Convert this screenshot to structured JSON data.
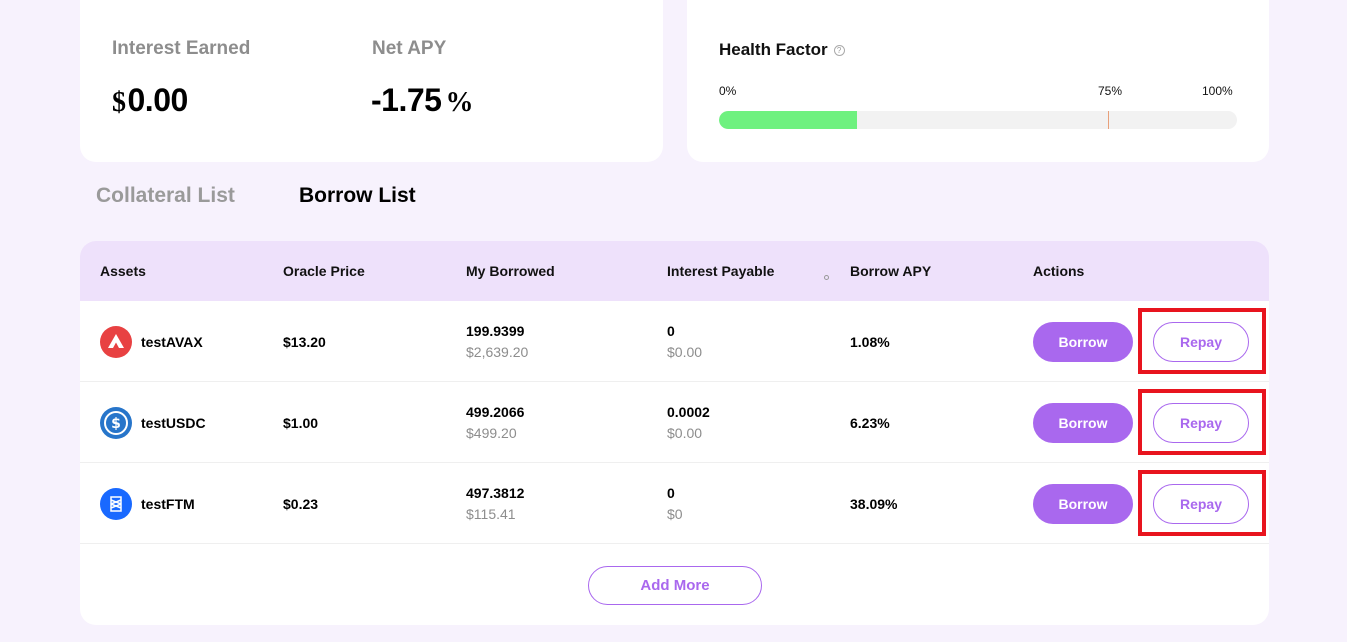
{
  "stats": {
    "interest_earned": {
      "label": "Interest Earned",
      "currency": "$",
      "value": "0.00"
    },
    "net_apy": {
      "label": "Net APY",
      "value": "-1.75",
      "unit": "%"
    }
  },
  "health_factor": {
    "title": "Health Factor",
    "help": "?",
    "ticks": {
      "min": "0%",
      "mid": "75%",
      "max": "100%"
    },
    "level_percent": 26.6,
    "threshold_percent": 75,
    "fill_color": "#6ef17f"
  },
  "tabs": [
    {
      "label": "Collateral List",
      "active": false
    },
    {
      "label": "Borrow List",
      "active": true
    }
  ],
  "table": {
    "columns": [
      "Assets",
      "Oracle Price",
      "My Borrowed",
      "Interest Payable",
      "Borrow APY",
      "Actions"
    ],
    "rows": [
      {
        "icon": "avax-icon",
        "asset": "testAVAX",
        "oracle_price": "$13.20",
        "borrowed": "199.9399",
        "borrowed_usd": "$2,639.20",
        "interest": "0",
        "interest_usd": "$0.00",
        "apy": "1.08%",
        "borrow_label": "Borrow",
        "repay_label": "Repay"
      },
      {
        "icon": "usdc-icon",
        "asset": "testUSDC",
        "oracle_price": "$1.00",
        "borrowed": "499.2066",
        "borrowed_usd": "$499.20",
        "interest": "0.0002",
        "interest_usd": "$0.00",
        "apy": "6.23%",
        "borrow_label": "Borrow",
        "repay_label": "Repay"
      },
      {
        "icon": "ftm-icon",
        "asset": "testFTM",
        "oracle_price": "$0.23",
        "borrowed": "497.3812",
        "borrowed_usd": "$115.41",
        "interest": "0",
        "interest_usd": "$0",
        "apy": "38.09%",
        "borrow_label": "Borrow",
        "repay_label": "Repay"
      }
    ],
    "add_more_label": "Add More"
  },
  "colors": {
    "accent": "#a968ee",
    "header_bg": "#eee1fb",
    "highlight": "#e8141e",
    "page_bg": "#f7f2fd"
  }
}
